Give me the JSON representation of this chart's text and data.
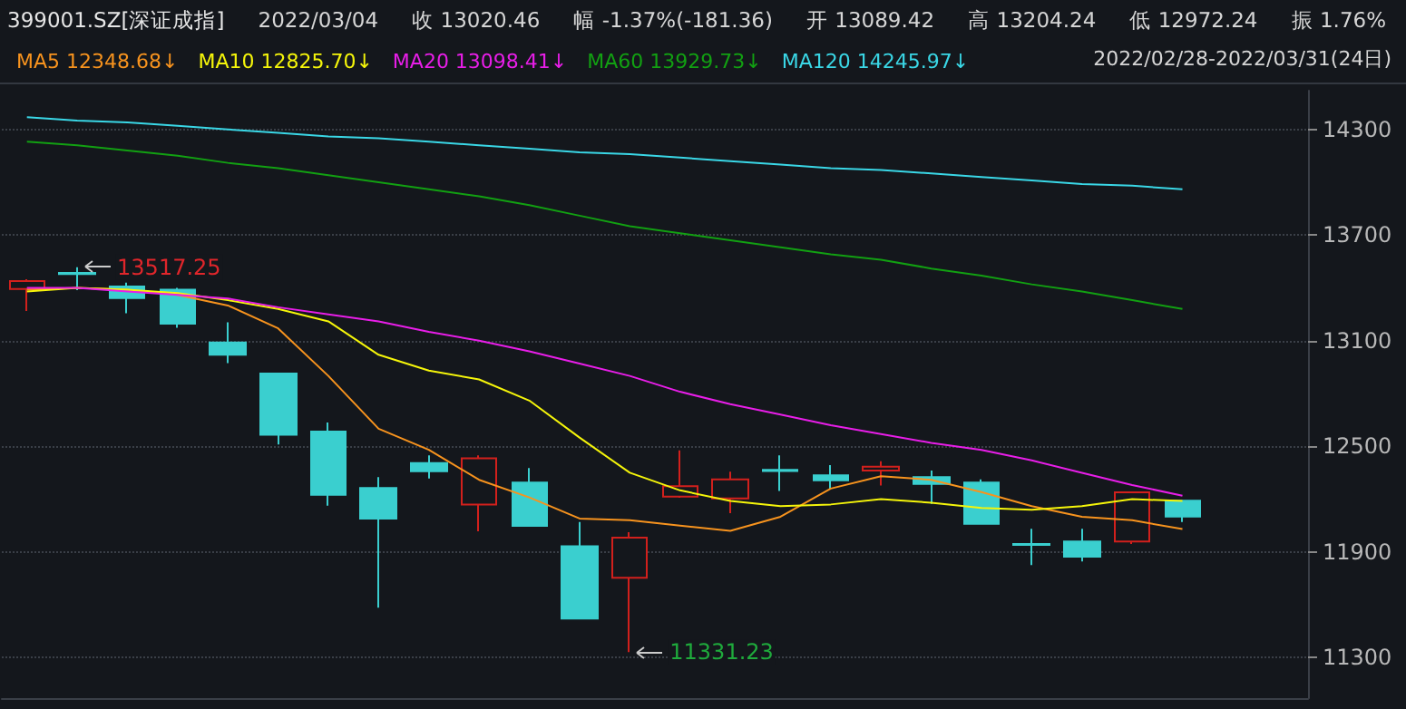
{
  "chart_data": {
    "type": "candlestick",
    "title": "399001.SZ[深证成指]",
    "subtitle": "2022/02/28-2022/03/31(24日)",
    "annotations": [
      "2022/03/04",
      "收 13020.46",
      "幅 -1.37%(-181.36)",
      "开 13089.42",
      "高 13204.24",
      "低 12972.24",
      "振 1.76%",
      "13517.25",
      "11331.23"
    ],
    "categories": [
      null,
      null,
      null,
      null,
      null,
      null,
      null,
      null,
      null,
      null,
      null,
      null,
      null,
      null,
      null,
      null,
      null,
      null,
      null,
      null,
      null,
      null,
      null,
      null
    ],
    "ohlc": [
      [
        13393,
        13449,
        13269,
        13439
      ],
      [
        13485,
        13517.25,
        13387,
        13478
      ],
      [
        13408,
        13430,
        13256,
        13342
      ],
      [
        13390,
        13400,
        13173,
        13197
      ],
      [
        13089.42,
        13204.24,
        12972.24,
        13020.46
      ],
      [
        12914,
        12914,
        12511,
        12566
      ],
      [
        12584,
        12635,
        12163,
        12225
      ],
      [
        12263,
        12325,
        11584,
        12090
      ],
      [
        12405,
        12449,
        12318,
        12359
      ],
      [
        12170,
        12449,
        12018,
        12432
      ],
      [
        12294,
        12377,
        12049,
        12049
      ],
      [
        11932,
        12070,
        11522,
        11522
      ],
      [
        11753,
        12012,
        11331.23,
        11981
      ],
      [
        12214,
        12477,
        12208,
        12273
      ],
      [
        12204,
        12356,
        12121,
        12312
      ],
      [
        12366,
        12449,
        12246,
        12360
      ],
      [
        12335,
        12394,
        12260,
        12307
      ],
      [
        12363,
        12415,
        12277,
        12384
      ],
      [
        12325,
        12363,
        12173,
        12287
      ],
      [
        12294,
        12312,
        12060,
        12060
      ],
      [
        11946,
        12032,
        11826,
        11940
      ],
      [
        11960,
        12032,
        11846,
        11873
      ],
      [
        11960,
        12239,
        11946,
        12239
      ],
      [
        12191,
        12191,
        12070,
        12101
      ]
    ],
    "colors": [
      "#d2201c",
      "#3acfcf",
      "#3acfcf",
      "#3acfcf",
      "#3acfcf",
      "#3acfcf",
      "#3acfcf",
      "#3acfcf",
      "#3acfcf",
      "#d2201c",
      "#3acfcf",
      "#3acfcf",
      "#d2201c",
      "#d2201c",
      "#d2201c",
      "#3acfcf",
      "#3acfcf",
      "#d2201c",
      "#3acfcf",
      "#3acfcf",
      "#3acfcf",
      "#3acfcf",
      "#d2201c",
      "#3acfcf"
    ],
    "series": [
      {
        "name": "MA5 12348.68↓",
        "type": "line",
        "color": "#f7931e",
        "values": [
          13390,
          13400,
          13390,
          13360,
          13300,
          13170,
          12900,
          12600,
          12480,
          12310,
          12210,
          12090,
          12080,
          12050,
          12020,
          12100,
          12260,
          12330,
          12310,
          12240,
          12160,
          12100,
          12080,
          12030
        ]
      },
      {
        "name": "MA10 12825.70↓",
        "type": "line",
        "color": "#f5f50a",
        "values": [
          13380,
          13400,
          13390,
          13370,
          13330,
          13280,
          13210,
          13020,
          12930,
          12880,
          12760,
          12550,
          12350,
          12250,
          12190,
          12160,
          12170,
          12200,
          12180,
          12150,
          12140,
          12160,
          12200,
          12190
        ]
      },
      {
        "name": "MA20 13098.41↓",
        "type": "line",
        "color": "#e81ee8",
        "values": [
          13400,
          13400,
          13380,
          13360,
          13340,
          13290,
          13250,
          13210,
          13150,
          13100,
          13040,
          12970,
          12900,
          12810,
          12740,
          12680,
          12620,
          12570,
          12520,
          12480,
          12420,
          12350,
          12280,
          12220
        ]
      },
      {
        "name": "MA60 13929.73↓",
        "type": "line",
        "color": "#12a012",
        "values": [
          14230,
          14210,
          14180,
          14150,
          14110,
          14080,
          14040,
          14000,
          13960,
          13920,
          13870,
          13810,
          13750,
          13710,
          13670,
          13630,
          13590,
          13560,
          13510,
          13470,
          13420,
          13380,
          13330,
          13280
        ]
      },
      {
        "name": "MA120 14245.97↓",
        "type": "line",
        "color": "#3ad7e6",
        "values": [
          14370,
          14350,
          14340,
          14320,
          14300,
          14280,
          14260,
          14250,
          14230,
          14210,
          14190,
          14170,
          14160,
          14140,
          14120,
          14100,
          14080,
          14070,
          14050,
          14030,
          14010,
          13990,
          13980,
          13960
        ]
      }
    ],
    "ylim": [
      11070,
      14520
    ],
    "yticks": [
      11300,
      11900,
      12500,
      13100,
      13700,
      14300
    ],
    "grid": "y",
    "legend": "top left",
    "tick_labels": "y",
    "marker": "none",
    "line_style": "solid"
  }
}
